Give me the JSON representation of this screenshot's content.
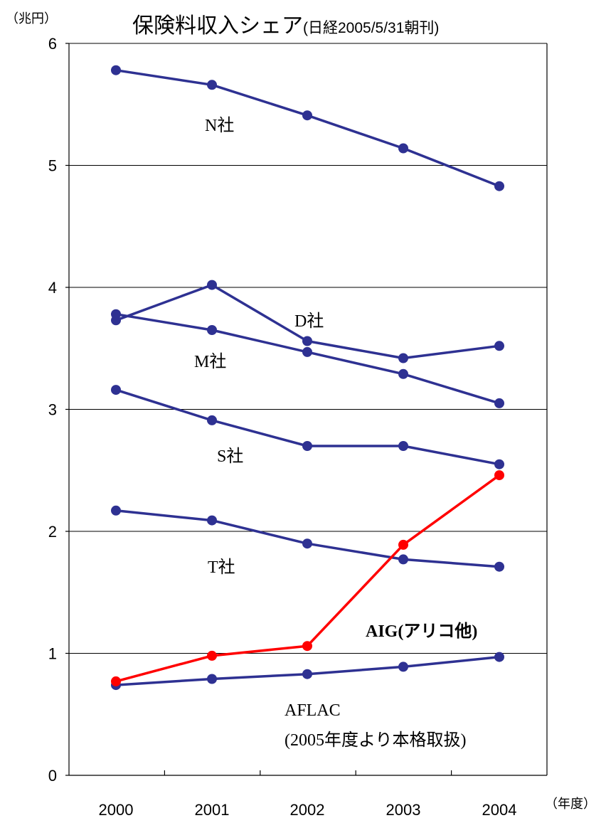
{
  "chart_data": {
    "type": "line",
    "title": "保険料収入シェア",
    "subtitle": "(日経2005/5/31朝刊)",
    "ylabel": "（兆円）",
    "xlabel": "（年度）",
    "x": [
      "2000",
      "2001",
      "2002",
      "2003",
      "2004"
    ],
    "ylim": [
      0,
      6
    ],
    "yticks": [
      "0",
      "1",
      "2",
      "3",
      "4",
      "5",
      "6"
    ],
    "grid": true,
    "series": [
      {
        "name": "N社",
        "color": "#2e3192",
        "values": [
          5.78,
          5.66,
          5.41,
          5.14,
          4.83
        ]
      },
      {
        "name": "D社",
        "color": "#2e3192",
        "values": [
          3.73,
          4.02,
          3.56,
          3.42,
          3.52
        ]
      },
      {
        "name": "M社",
        "color": "#2e3192",
        "values": [
          3.78,
          3.65,
          3.47,
          3.29,
          3.05
        ]
      },
      {
        "name": "S社",
        "color": "#2e3192",
        "values": [
          3.16,
          2.91,
          2.7,
          2.7,
          2.55
        ]
      },
      {
        "name": "T社",
        "color": "#2e3192",
        "values": [
          2.17,
          2.09,
          1.9,
          1.77,
          1.71
        ]
      },
      {
        "name": "AIG(アリコ他)",
        "color": "#ff0000",
        "values": [
          0.77,
          0.98,
          1.06,
          1.89,
          2.46
        ]
      },
      {
        "name": "AFLAC",
        "note": "(2005年度より本格取扱)",
        "color": "#2e3192",
        "values": [
          0.74,
          0.79,
          0.83,
          0.89,
          0.97
        ]
      }
    ]
  }
}
